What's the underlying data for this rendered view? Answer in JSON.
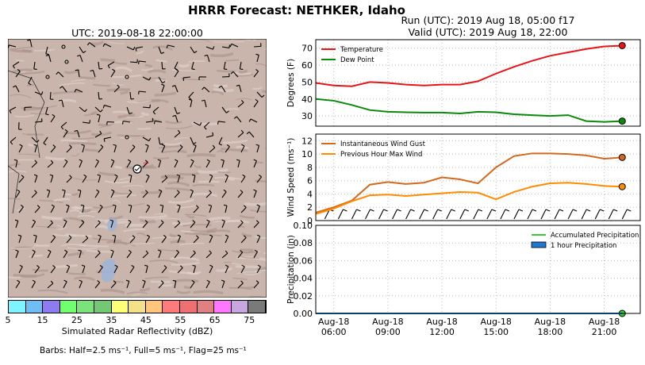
{
  "header": {
    "title": "HRRR Forecast: NETHKER, Idaho",
    "run_line": "Run (UTC): 2019 Aug 18, 05:00 f17",
    "valid_line": "Valid (UTC): 2019 Aug 18, 22:00"
  },
  "map": {
    "title": "UTC: 2019-08-18 22:00:00",
    "colorbar_label": "Simulated Radar Reflectivity (dBZ)",
    "colorbar_ticks": [
      "5",
      "15",
      "25",
      "35",
      "45",
      "55",
      "65",
      "75"
    ],
    "colorbar_colors": [
      "#7df4ff",
      "#6fbdf5",
      "#8c7cf0",
      "#71ff71",
      "#7ae47a",
      "#74c775",
      "#ffff77",
      "#f5e08a",
      "#ffc57a",
      "#ff7a7a",
      "#ee7070",
      "#e08080",
      "#ff77ff",
      "#c8a6e0",
      "#7a7a7a"
    ],
    "barbs_note": "Barbs: Half=2.5 ms⁻¹, Full=5 ms⁻¹, Flag=25 ms⁻¹",
    "terrain_color": "#c9b5ab",
    "point_label_marker": "station-marker"
  },
  "chart_data": [
    {
      "type": "line",
      "id": "temperature",
      "ylabel": "Degrees (F)",
      "ylim": [
        24,
        75
      ],
      "yticks": [
        30,
        40,
        50,
        60,
        70
      ],
      "grid": true,
      "legend_placement": "top-left",
      "x_hours": [
        5,
        6,
        7,
        8,
        9,
        10,
        11,
        12,
        13,
        14,
        15,
        16,
        17,
        18,
        19,
        20,
        21,
        22
      ],
      "series": [
        {
          "name": "Temperature",
          "color": "#e8141a",
          "values": [
            49.5,
            48,
            47.5,
            50,
            49.5,
            48.5,
            48,
            48.5,
            48.5,
            50.5,
            55,
            59,
            62.5,
            65.5,
            67.5,
            69.5,
            71,
            71.5
          ]
        },
        {
          "name": "Dew Point",
          "color": "#0a8a0a",
          "values": [
            40,
            39,
            36.5,
            33.5,
            32.5,
            32.2,
            32,
            32,
            31.5,
            32.5,
            32.2,
            31,
            30.5,
            30,
            30.5,
            27,
            26.5,
            27
          ]
        }
      ]
    },
    {
      "type": "line",
      "id": "wind",
      "ylabel": "Wind Speed  (ms⁻¹)",
      "ylim": [
        0,
        13
      ],
      "yticks": [
        0,
        2,
        4,
        6,
        8,
        10,
        12
      ],
      "grid": true,
      "legend_placement": "top-left",
      "x_hours": [
        5,
        6,
        7,
        8,
        9,
        10,
        11,
        12,
        13,
        14,
        15,
        16,
        17,
        18,
        19,
        20,
        21,
        22
      ],
      "series": [
        {
          "name": "Instantaneous Wind Gust",
          "color": "#d2691e",
          "values": [
            1.2,
            2,
            3,
            5.4,
            5.8,
            5.5,
            5.7,
            6.5,
            6.2,
            5.6,
            8,
            9.7,
            10.1,
            10.1,
            10,
            9.8,
            9.3,
            9.5
          ]
        },
        {
          "name": "Previous Hour Max Wind",
          "color": "#ff8c00",
          "values": [
            1,
            1.8,
            2.9,
            3.8,
            3.9,
            3.7,
            3.9,
            4.1,
            4.3,
            4.2,
            3.2,
            4.3,
            5.1,
            5.6,
            5.7,
            5.5,
            5.2,
            5.1
          ]
        }
      ]
    },
    {
      "type": "line",
      "id": "precipitation",
      "ylabel": "Precipitation (in)",
      "ylim": [
        0,
        0.1
      ],
      "yticks": [
        "0.00",
        "0.02",
        "0.04",
        "0.06",
        "0.08",
        "0.10"
      ],
      "grid": true,
      "legend_placement": "top-right",
      "x_hours": [
        5,
        6,
        7,
        8,
        9,
        10,
        11,
        12,
        13,
        14,
        15,
        16,
        17,
        18,
        19,
        20,
        21,
        22
      ],
      "xtick_labels": [
        {
          "hour": 6,
          "line1": "Aug-18",
          "line2": "06:00"
        },
        {
          "hour": 9,
          "line1": "Aug-18",
          "line2": "09:00"
        },
        {
          "hour": 12,
          "line1": "Aug-18",
          "line2": "12:00"
        },
        {
          "hour": 15,
          "line1": "Aug-18",
          "line2": "15:00"
        },
        {
          "hour": 18,
          "line1": "Aug-18",
          "line2": "18:00"
        },
        {
          "hour": 21,
          "line1": "Aug-18",
          "line2": "21:00"
        }
      ],
      "series": [
        {
          "name": "Accumulated Precipitation",
          "color": "#33cc33",
          "values": [
            0,
            0,
            0,
            0,
            0,
            0,
            0,
            0,
            0,
            0,
            0,
            0,
            0,
            0,
            0,
            0,
            0,
            0
          ]
        },
        {
          "name": "1 hour Precipitation",
          "color": "#1e78d2",
          "values": [
            0,
            0,
            0,
            0,
            0,
            0,
            0,
            0,
            0,
            0,
            0,
            0,
            0,
            0,
            0,
            0,
            0,
            0
          ]
        }
      ]
    }
  ]
}
